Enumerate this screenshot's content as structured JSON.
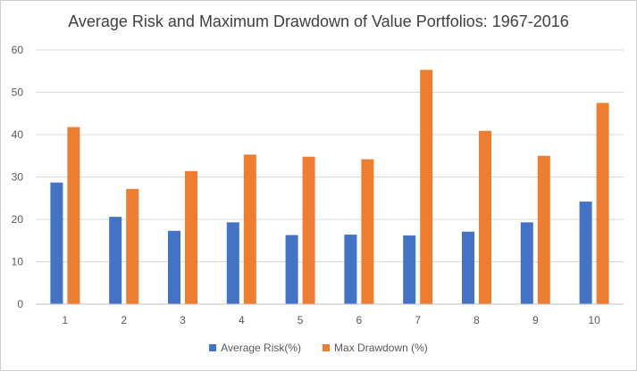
{
  "chart_data": {
    "type": "bar",
    "title": "Average Risk and Maximum Drawdown of Value Portfolios: 1967-2016",
    "xlabel": "",
    "ylabel": "",
    "categories": [
      "1",
      "2",
      "3",
      "4",
      "5",
      "6",
      "7",
      "8",
      "9",
      "10"
    ],
    "series": [
      {
        "name": "Average Risk(%)",
        "color": "#4472C4",
        "values": [
          28.7,
          20.6,
          17.3,
          19.3,
          16.3,
          16.4,
          16.2,
          17.1,
          19.3,
          24.2
        ]
      },
      {
        "name": "Max Drawdown (%)",
        "color": "#ED7D31",
        "values": [
          41.8,
          27.2,
          31.4,
          35.3,
          34.8,
          34.2,
          55.3,
          40.9,
          35.0,
          47.5
        ]
      }
    ],
    "ylim": [
      0,
      60
    ],
    "yticks": [
      0,
      10,
      20,
      30,
      40,
      50,
      60
    ],
    "grid": true,
    "legend_position": "bottom"
  }
}
